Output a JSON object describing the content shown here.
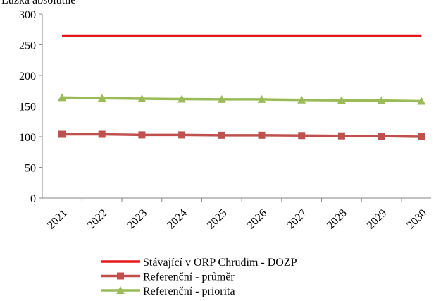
{
  "chart_data": {
    "type": "line",
    "y_axis_label": "Lůžka absolutně",
    "categories": [
      "2021",
      "2022",
      "2023",
      "2024",
      "2025",
      "2026",
      "2027",
      "2028",
      "2029",
      "2030"
    ],
    "series": [
      {
        "name": "Stávající v ORP Chrudim - DOZP",
        "color": "#e3191c",
        "marker": "none",
        "values": [
          265,
          265,
          265,
          265,
          265,
          265,
          265,
          265,
          265,
          265
        ]
      },
      {
        "name": "Referenční - průměr",
        "color": "#c0504d",
        "marker": "square",
        "values": [
          104,
          104,
          103,
          103,
          102.5,
          102.5,
          102,
          101.5,
          101,
          100
        ]
      },
      {
        "name": "Referenční - priorita",
        "color": "#9bbb59",
        "marker": "triangle",
        "values": [
          164,
          163,
          162,
          161.5,
          161,
          161,
          160,
          159.5,
          159,
          158
        ]
      }
    ],
    "ylim": [
      0,
      300
    ],
    "yticks": [
      0,
      50,
      100,
      150,
      200,
      250,
      300
    ],
    "legend": "bottom"
  }
}
